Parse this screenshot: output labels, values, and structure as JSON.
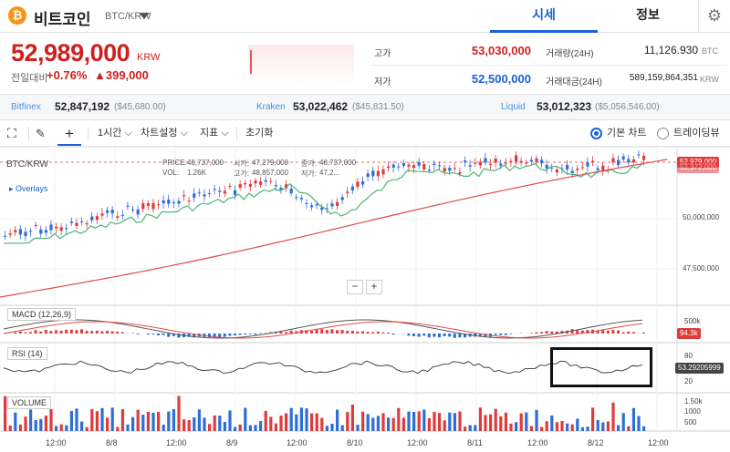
{
  "header": {
    "coin_icon": "₿",
    "coin_name": "비트코인",
    "pair": "BTC/KRW",
    "tabs": [
      {
        "label": "시세"
      },
      {
        "label": "정보"
      }
    ],
    "settings_icon": "gear-icon"
  },
  "summary": {
    "price": "52,989,000",
    "unit": "KRW",
    "change_label": "전일대비",
    "change_pct": "+0.76%",
    "change_amt": "▲399,000",
    "high_label": "고가",
    "high": "53,030,000",
    "low_label": "저가",
    "low": "52,500,000",
    "volume_label": "거래량(24H)",
    "volume": "11,126.930",
    "volume_unit": "BTC",
    "amount_label": "거래대금(24H)",
    "amount": "589,159,864,351",
    "amount_unit": "KRW",
    "colors": {
      "up": "#d01f1f",
      "down": "#1a62d6"
    }
  },
  "exchanges": [
    {
      "name": "Bitfinex",
      "price": "52,847,192",
      "usd": "($45,680.00)"
    },
    {
      "name": "Kraken",
      "price": "53,022,462",
      "usd": "($45,831.50)"
    },
    {
      "name": "Liquid",
      "price": "53,012,323",
      "usd": "($5,056,546.00)"
    }
  ],
  "toolbar": {
    "interval": "1시간",
    "chart_settings": "차트설정",
    "indicators": "지표",
    "reset": "초기화",
    "basic_chart": "기본 차트",
    "tradingview": "트레이딩뷰"
  },
  "chart": {
    "symbol": "BTC/KRW",
    "overlays": "▸ Overlays",
    "ohlc": {
      "price_label": "PRICE:",
      "price": "48,737,000",
      "vol_label": "VOL:",
      "vol": "1.26K",
      "open_label": "시가:",
      "open": "47,279,000",
      "high_label": "고가:",
      "high": "48,857,000",
      "close_label": "종가:",
      "close": "48,737,000",
      "low_label": "저가:",
      "low": "47,2..."
    },
    "price_axis": [
      "50,000,000",
      "47,500,000"
    ],
    "last_price_tag": "52,979,000",
    "ma_tag": "52,372,000",
    "macd_label": "MACD (12,26,9)",
    "macd_axis": "500k",
    "macd_tag": "94.3k",
    "rsi_label": "RSI (14)",
    "rsi_axis": [
      "80",
      "20"
    ],
    "rsi_tag": "53.29205999",
    "volume_label": "VOLUME",
    "volume_axis": [
      "1.50k",
      "1000",
      "500"
    ],
    "time_axis": [
      "12:00",
      "8/8",
      "12:00",
      "8/9",
      "12:00",
      "8/10",
      "12:00",
      "8/11",
      "12:00",
      "8/12",
      "12:00"
    ]
  }
}
